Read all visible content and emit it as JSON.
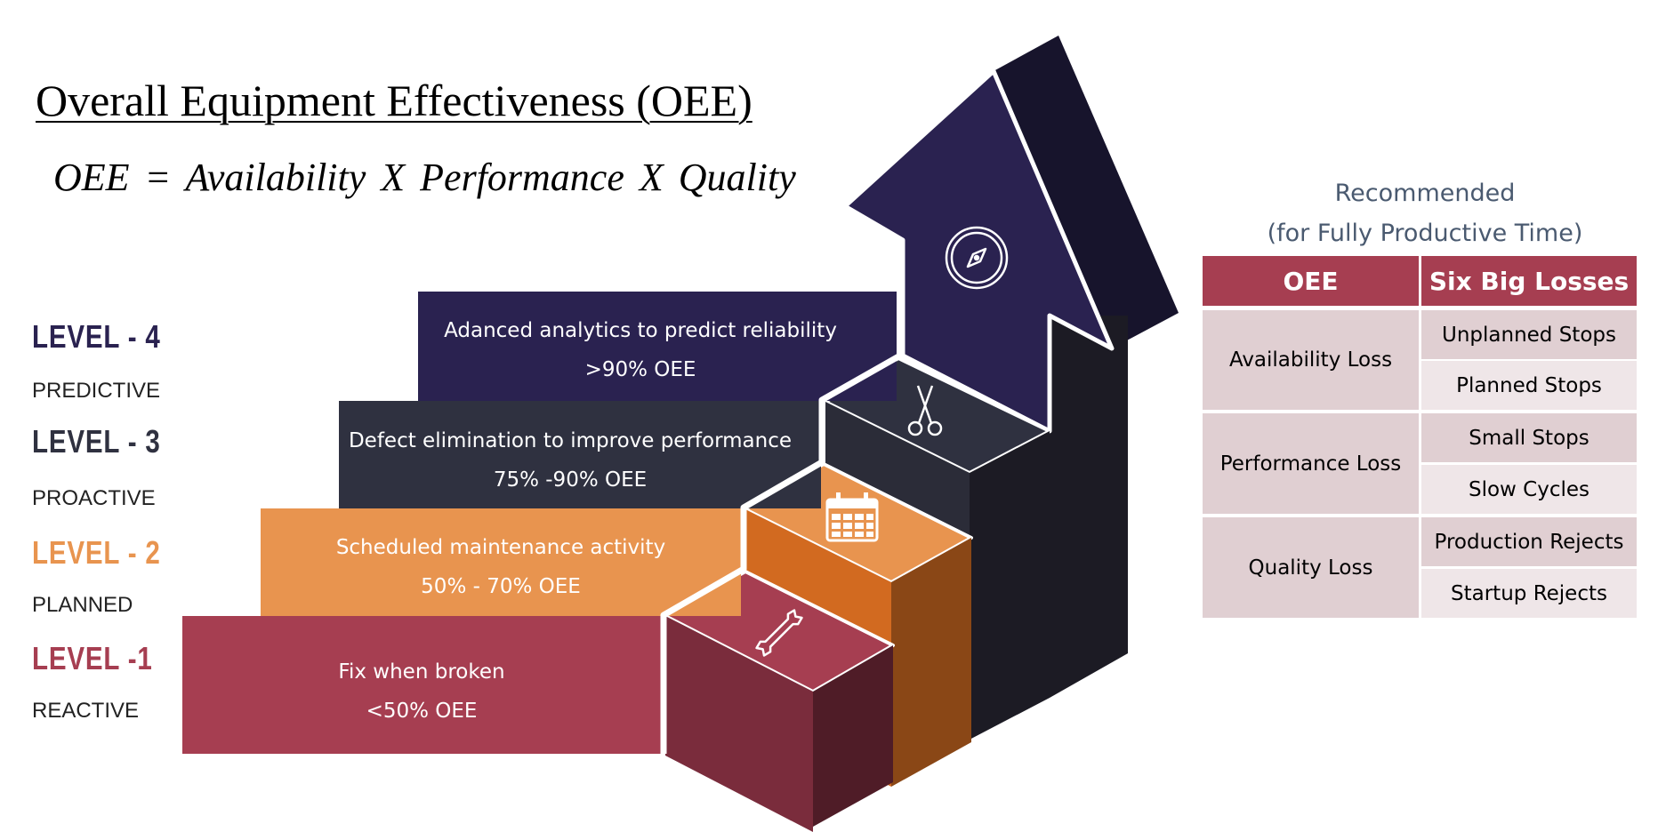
{
  "title": "Overall Equipment Effectiveness (OEE)",
  "formula": "OEE = Availability X Performance X Quality",
  "levels": [
    {
      "title": "LEVEL - 4",
      "subtitle": "PREDICTIVE",
      "desc": "Adanced analytics to predict reliability",
      "target": ">90% OEE",
      "color": "#2a2250"
    },
    {
      "title": "LEVEL - 3",
      "subtitle": "PROACTIVE",
      "desc": "Defect elimination to improve performance",
      "target": "75% -90% OEE",
      "color": "#2f3140"
    },
    {
      "title": "LEVEL - 2",
      "subtitle": "PLANNED",
      "desc": "Scheduled maintenance activity",
      "target": "50% - 70% OEE",
      "color": "#e8944f"
    },
    {
      "title": "LEVEL -1",
      "subtitle": "REACTIVE",
      "desc": "Fix when broken",
      "target": "<50% OEE",
      "color": "#a63e51"
    }
  ],
  "icons": {
    "level4": "compass-icon",
    "level3": "scissors-icon",
    "level2": "calendar-icon",
    "level1": "wrench-icon"
  },
  "recommended": {
    "line1": "Recommended",
    "line2": "(for Fully Productive Time)"
  },
  "table": {
    "headers": [
      "OEE",
      "Six Big Losses"
    ],
    "groups": [
      {
        "loss": "Availability Loss",
        "items": [
          "Unplanned Stops",
          "Planned Stops"
        ]
      },
      {
        "loss": "Performance Loss",
        "items": [
          "Small Stops",
          "Slow Cycles"
        ]
      },
      {
        "loss": "Quality Loss",
        "items": [
          "Production Rejects",
          "Startup Rejects"
        ]
      }
    ]
  },
  "colors": {
    "header": "#a63e51",
    "loss_cell": "#e0cfd2",
    "alt_cell": "#efe6e8",
    "arrow_front": "#2a2250",
    "arrow_side": "#17142c"
  }
}
